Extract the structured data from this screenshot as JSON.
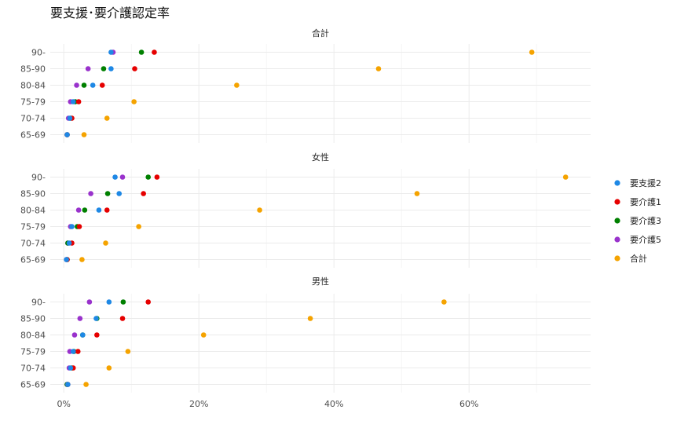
{
  "chart_data": {
    "type": "scatter",
    "title": "要支援･要介護認定率",
    "xlabel": "",
    "ylabel": "",
    "xlim": [
      -0.02,
      0.78
    ],
    "x_ticks": [
      0,
      0.2,
      0.4,
      0.6
    ],
    "x_tick_labels": [
      "0%",
      "20%",
      "40%",
      "60%"
    ],
    "categories": [
      "90-",
      "85-90",
      "80-84",
      "75-79",
      "70-74",
      "65-69"
    ],
    "legend_position": "right",
    "grid": true,
    "series": [
      {
        "name": "要支援2",
        "color": "#1e88e5"
      },
      {
        "name": "要介護1",
        "color": "#e60000"
      },
      {
        "name": "要介護3",
        "color": "#008000"
      },
      {
        "name": "要介護5",
        "color": "#9932cc"
      },
      {
        "name": "合計",
        "color": "#f5a300"
      }
    ],
    "facets": [
      {
        "title": "合計",
        "values": {
          "要支援2": [
            0.07,
            0.07,
            0.043,
            0.014,
            0.009,
            0.005
          ],
          "要介護1": [
            0.134,
            0.105,
            0.057,
            0.022,
            0.012,
            0.005
          ],
          "要介護3": [
            0.115,
            0.059,
            0.03,
            0.017,
            0.01,
            0.005
          ],
          "要介護5": [
            0.073,
            0.036,
            0.019,
            0.01,
            0.007,
            0.005
          ],
          "合計": [
            0.693,
            0.466,
            0.256,
            0.104,
            0.064,
            0.03
          ]
        }
      },
      {
        "title": "女性",
        "values": {
          "要支援2": [
            0.076,
            0.082,
            0.052,
            0.012,
            0.008,
            0.004
          ],
          "要介護1": [
            0.138,
            0.118,
            0.064,
            0.023,
            0.012,
            0.005
          ],
          "要介護3": [
            0.125,
            0.065,
            0.031,
            0.02,
            0.006,
            0.005
          ],
          "要介護5": [
            0.087,
            0.04,
            0.022,
            0.01,
            0.006,
            0.004
          ],
          "合計": [
            0.743,
            0.523,
            0.29,
            0.111,
            0.062,
            0.027
          ]
        }
      },
      {
        "title": "男性",
        "values": {
          "要支援2": [
            0.067,
            0.048,
            0.028,
            0.014,
            0.01,
            0.006
          ],
          "要介護1": [
            0.125,
            0.087,
            0.049,
            0.021,
            0.014,
            0.006
          ],
          "要介護3": [
            0.088,
            0.049,
            0.028,
            0.015,
            0.012,
            0.005
          ],
          "要介護5": [
            0.038,
            0.024,
            0.016,
            0.009,
            0.008,
            0.005
          ],
          "合計": [
            0.563,
            0.365,
            0.207,
            0.095,
            0.067,
            0.033
          ]
        }
      }
    ]
  }
}
